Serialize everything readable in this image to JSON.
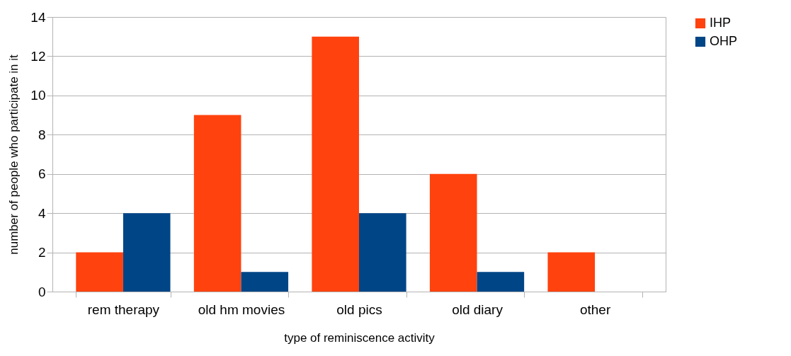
{
  "chart_data": {
    "type": "bar",
    "xlabel": "type of reminiscence activity",
    "ylabel": "number of people who participate in it",
    "categories": [
      "rem therapy",
      "old hm movies",
      "old pics",
      "old diary",
      "other"
    ],
    "series": [
      {
        "name": "IHP",
        "color": "#ff420e",
        "values": [
          2,
          9,
          13,
          6,
          2
        ]
      },
      {
        "name": "OHP",
        "color": "#004586",
        "values": [
          4,
          1,
          4,
          1,
          0
        ]
      }
    ],
    "ylim": [
      0,
      14
    ],
    "yticks": [
      0,
      2,
      4,
      6,
      8,
      10,
      12,
      14
    ],
    "grid": "y",
    "legend": "right"
  }
}
